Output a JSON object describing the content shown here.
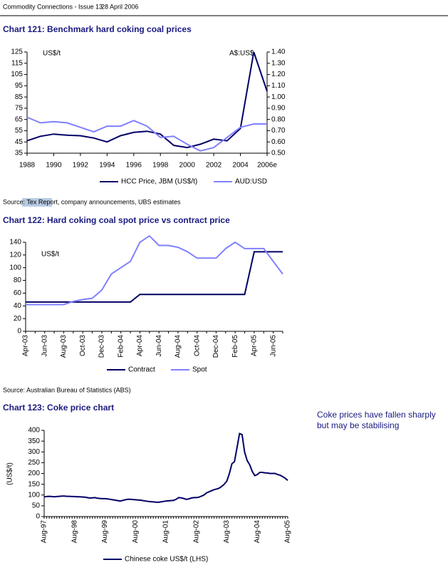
{
  "header": {
    "title": "Commodity Connections - Issue 13",
    "date": "28 April 2006"
  },
  "side_note": "Coke prices have fallen sharply but may be stabilising",
  "chart_data": [
    {
      "type": "line",
      "title": "Chart 121: Benchmark hard coking coal prices",
      "y_unit": "US$/t",
      "y2_unit": "A$:US$",
      "x": [
        1988,
        1989,
        1990,
        1991,
        1992,
        1993,
        1994,
        1995,
        1996,
        1997,
        1998,
        1999,
        2000,
        2001,
        2002,
        2003,
        2004,
        2005,
        2006
      ],
      "xlim": [
        1988,
        2006
      ],
      "xticks": [
        1988,
        1990,
        1992,
        1994,
        1996,
        1998,
        2000,
        2002,
        2004,
        {
          "value": 2006,
          "label": "2006e"
        }
      ],
      "ylim": [
        35,
        125
      ],
      "yticks": [
        35,
        45,
        55,
        65,
        75,
        85,
        95,
        105,
        115,
        125
      ],
      "y2lim": [
        0.5,
        1.4
      ],
      "y2ticks": [
        {
          "value": 0.5,
          "label": "0.50"
        },
        {
          "value": 0.6,
          "label": "0.60"
        },
        {
          "value": 0.7,
          "label": "0.70"
        },
        {
          "value": 0.8,
          "label": "0.80"
        },
        {
          "value": 0.9,
          "label": "0.90"
        },
        {
          "value": 1.0,
          "label": "1.00"
        },
        {
          "value": 1.1,
          "label": "1.10"
        },
        {
          "value": 1.2,
          "label": "1.20"
        },
        {
          "value": 1.3,
          "label": "1.30"
        },
        {
          "value": 1.4,
          "label": "1.40"
        }
      ],
      "series": [
        {
          "name": "HCC Price, JBM (US$/t)",
          "color": "#000066",
          "values": [
            46,
            50,
            52,
            51,
            50.5,
            48.5,
            45,
            50.5,
            53.5,
            54.5,
            52,
            42,
            40,
            43,
            47.5,
            46,
            57,
            125,
            90
          ]
        },
        {
          "name": "AUD:USD",
          "color": "#8080ff",
          "axis": "y2",
          "values": [
            0.82,
            0.77,
            0.78,
            0.77,
            0.73,
            0.69,
            0.74,
            0.74,
            0.79,
            0.74,
            0.64,
            0.65,
            0.58,
            0.52,
            0.55,
            0.64,
            0.73,
            0.76,
            0.76
          ]
        }
      ],
      "source": "Source: Tex Report, company announcements, UBS estimates"
    },
    {
      "type": "line",
      "title": "Chart 122: Hard coking coal spot price vs contract price",
      "y_unit": "US$/t",
      "categories": [
        "Apr-03",
        null,
        "Jun-03",
        null,
        "Aug-03",
        null,
        "Oct-03",
        null,
        "Dec-03",
        null,
        "Feb-04",
        null,
        "Apr-04",
        null,
        "Jun-04",
        null,
        "Aug-04",
        null,
        "Oct-04",
        null,
        "Dec-04",
        null,
        "Feb-05",
        null,
        "Apr-05",
        null,
        "Jun-05",
        null
      ],
      "ylim": [
        0,
        140
      ],
      "yticks": [
        0,
        20,
        40,
        60,
        80,
        100,
        120,
        140
      ],
      "series": [
        {
          "name": "Contract",
          "color": "#000066",
          "values": [
            46,
            46,
            46,
            46,
            46,
            46,
            46,
            46,
            46,
            46,
            46,
            46,
            58,
            58,
            58,
            58,
            58,
            58,
            58,
            58,
            58,
            58,
            58,
            58,
            125,
            125,
            125,
            125
          ]
        },
        {
          "name": "Spot",
          "color": "#8080ff",
          "values": [
            42,
            42,
            42,
            42,
            42,
            47,
            50,
            52,
            65,
            90,
            100,
            110,
            140,
            150,
            135,
            135,
            132,
            125,
            115,
            115,
            115,
            130,
            140,
            130,
            130,
            130,
            110,
            90
          ]
        }
      ],
      "source": "Source: Australian Bureau of Statistics (ABS)"
    },
    {
      "type": "line",
      "title": "Chart 123: Coke price chart",
      "ylabel": "(US$/t)",
      "categories": [
        "Aug-97",
        null,
        null,
        null,
        null,
        null,
        null,
        null,
        null,
        null,
        null,
        null,
        "Aug-98",
        null,
        null,
        null,
        null,
        null,
        null,
        null,
        null,
        null,
        null,
        null,
        "Aug-99",
        null,
        null,
        null,
        null,
        null,
        null,
        null,
        null,
        null,
        null,
        null,
        "Aug-00",
        null,
        null,
        null,
        null,
        null,
        null,
        null,
        null,
        null,
        null,
        null,
        "Aug-01",
        null,
        null,
        null,
        null,
        null,
        null,
        null,
        null,
        null,
        null,
        null,
        "Aug-02",
        null,
        null,
        null,
        null,
        null,
        null,
        null,
        null,
        null,
        null,
        null,
        "Aug-03",
        null,
        null,
        null,
        null,
        null,
        null,
        null,
        null,
        null,
        null,
        null,
        "Aug-04",
        null,
        null,
        null,
        null,
        null,
        null,
        null,
        null,
        null,
        null,
        null,
        "Aug-05"
      ],
      "ylim": [
        0,
        400
      ],
      "yticks": [
        0,
        50,
        100,
        150,
        200,
        250,
        300,
        350,
        400
      ],
      "series": [
        {
          "name": "Chinese coke US$/t (LHS)",
          "color": "#000066",
          "values": [
            92,
            93,
            94,
            93,
            92,
            93,
            94,
            95,
            95,
            94,
            94,
            93,
            93,
            92,
            92,
            91,
            90,
            88,
            86,
            87,
            88,
            85,
            84,
            83,
            83,
            82,
            80,
            78,
            76,
            74,
            72,
            75,
            78,
            80,
            80,
            79,
            78,
            77,
            76,
            74,
            72,
            70,
            69,
            68,
            67,
            66,
            68,
            70,
            72,
            73,
            74,
            75,
            80,
            88,
            87,
            84,
            80,
            82,
            86,
            88,
            88,
            90,
            95,
            100,
            110,
            115,
            120,
            125,
            128,
            132,
            140,
            150,
            165,
            200,
            245,
            255,
            320,
            385,
            380,
            300,
            260,
            240,
            210,
            190,
            195,
            205,
            205,
            203,
            202,
            200,
            200,
            200,
            195,
            192,
            185,
            178,
            168
          ]
        }
      ]
    }
  ]
}
